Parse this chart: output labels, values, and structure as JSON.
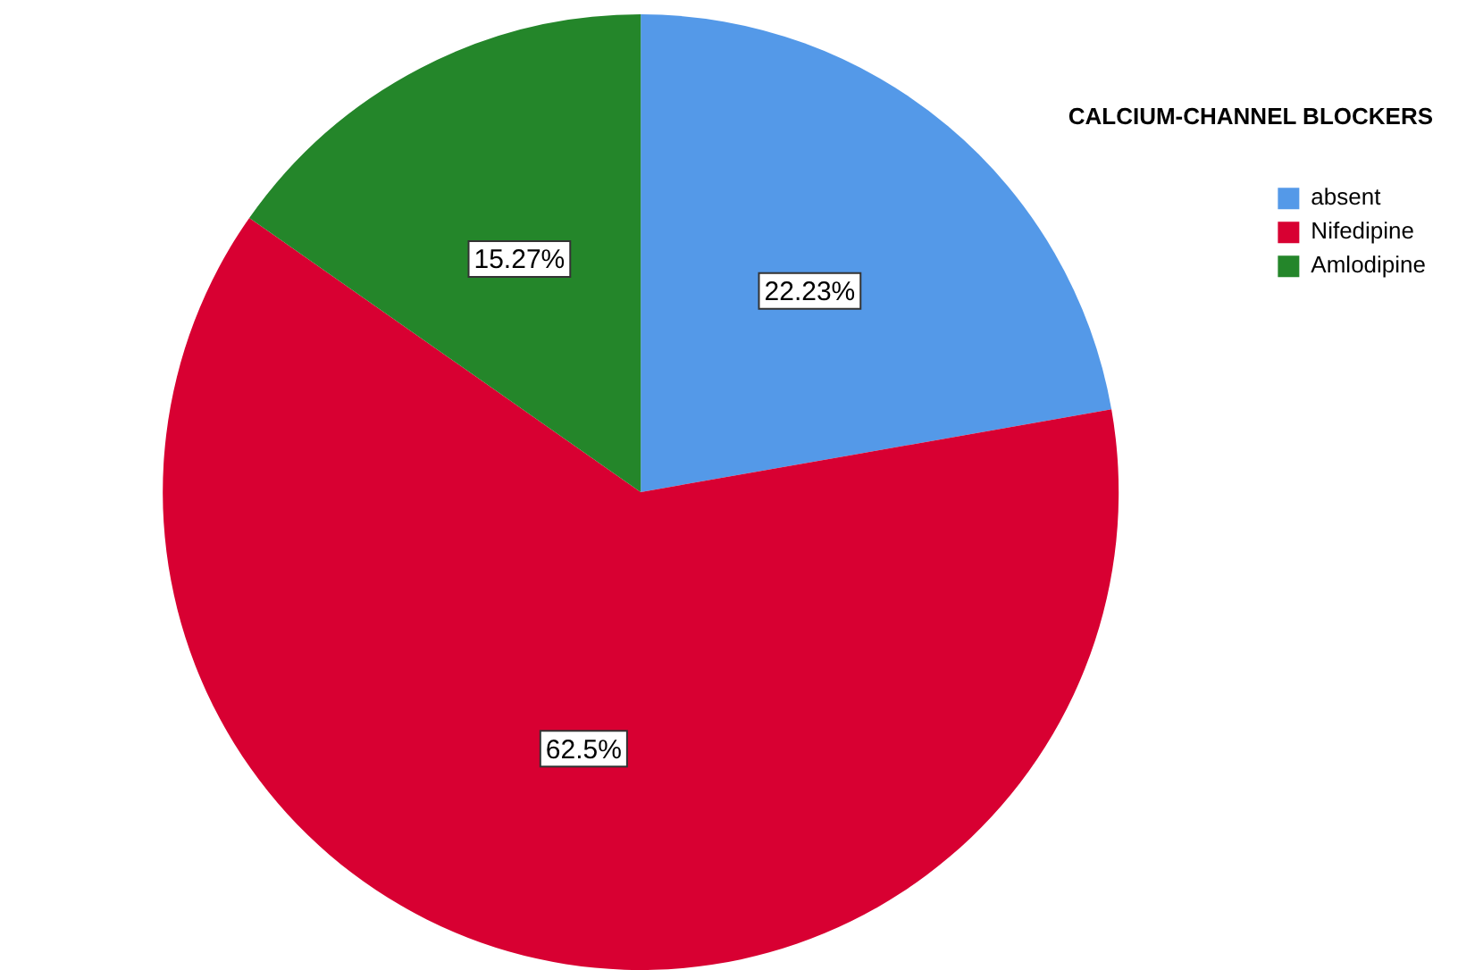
{
  "chart_data": {
    "type": "pie",
    "legend_title": "CALCIUM-CHANNEL BLOCKERS",
    "legend": "top right",
    "value_labels": [
      "22.23%",
      "62.5%",
      "15.27%"
    ],
    "categories": [
      "absent",
      "Nifedipine",
      "Amlodipine"
    ],
    "values": [
      22.23,
      62.5,
      15.27
    ],
    "colors": [
      "#5499e8",
      "#d80032",
      "#24862a"
    ]
  }
}
